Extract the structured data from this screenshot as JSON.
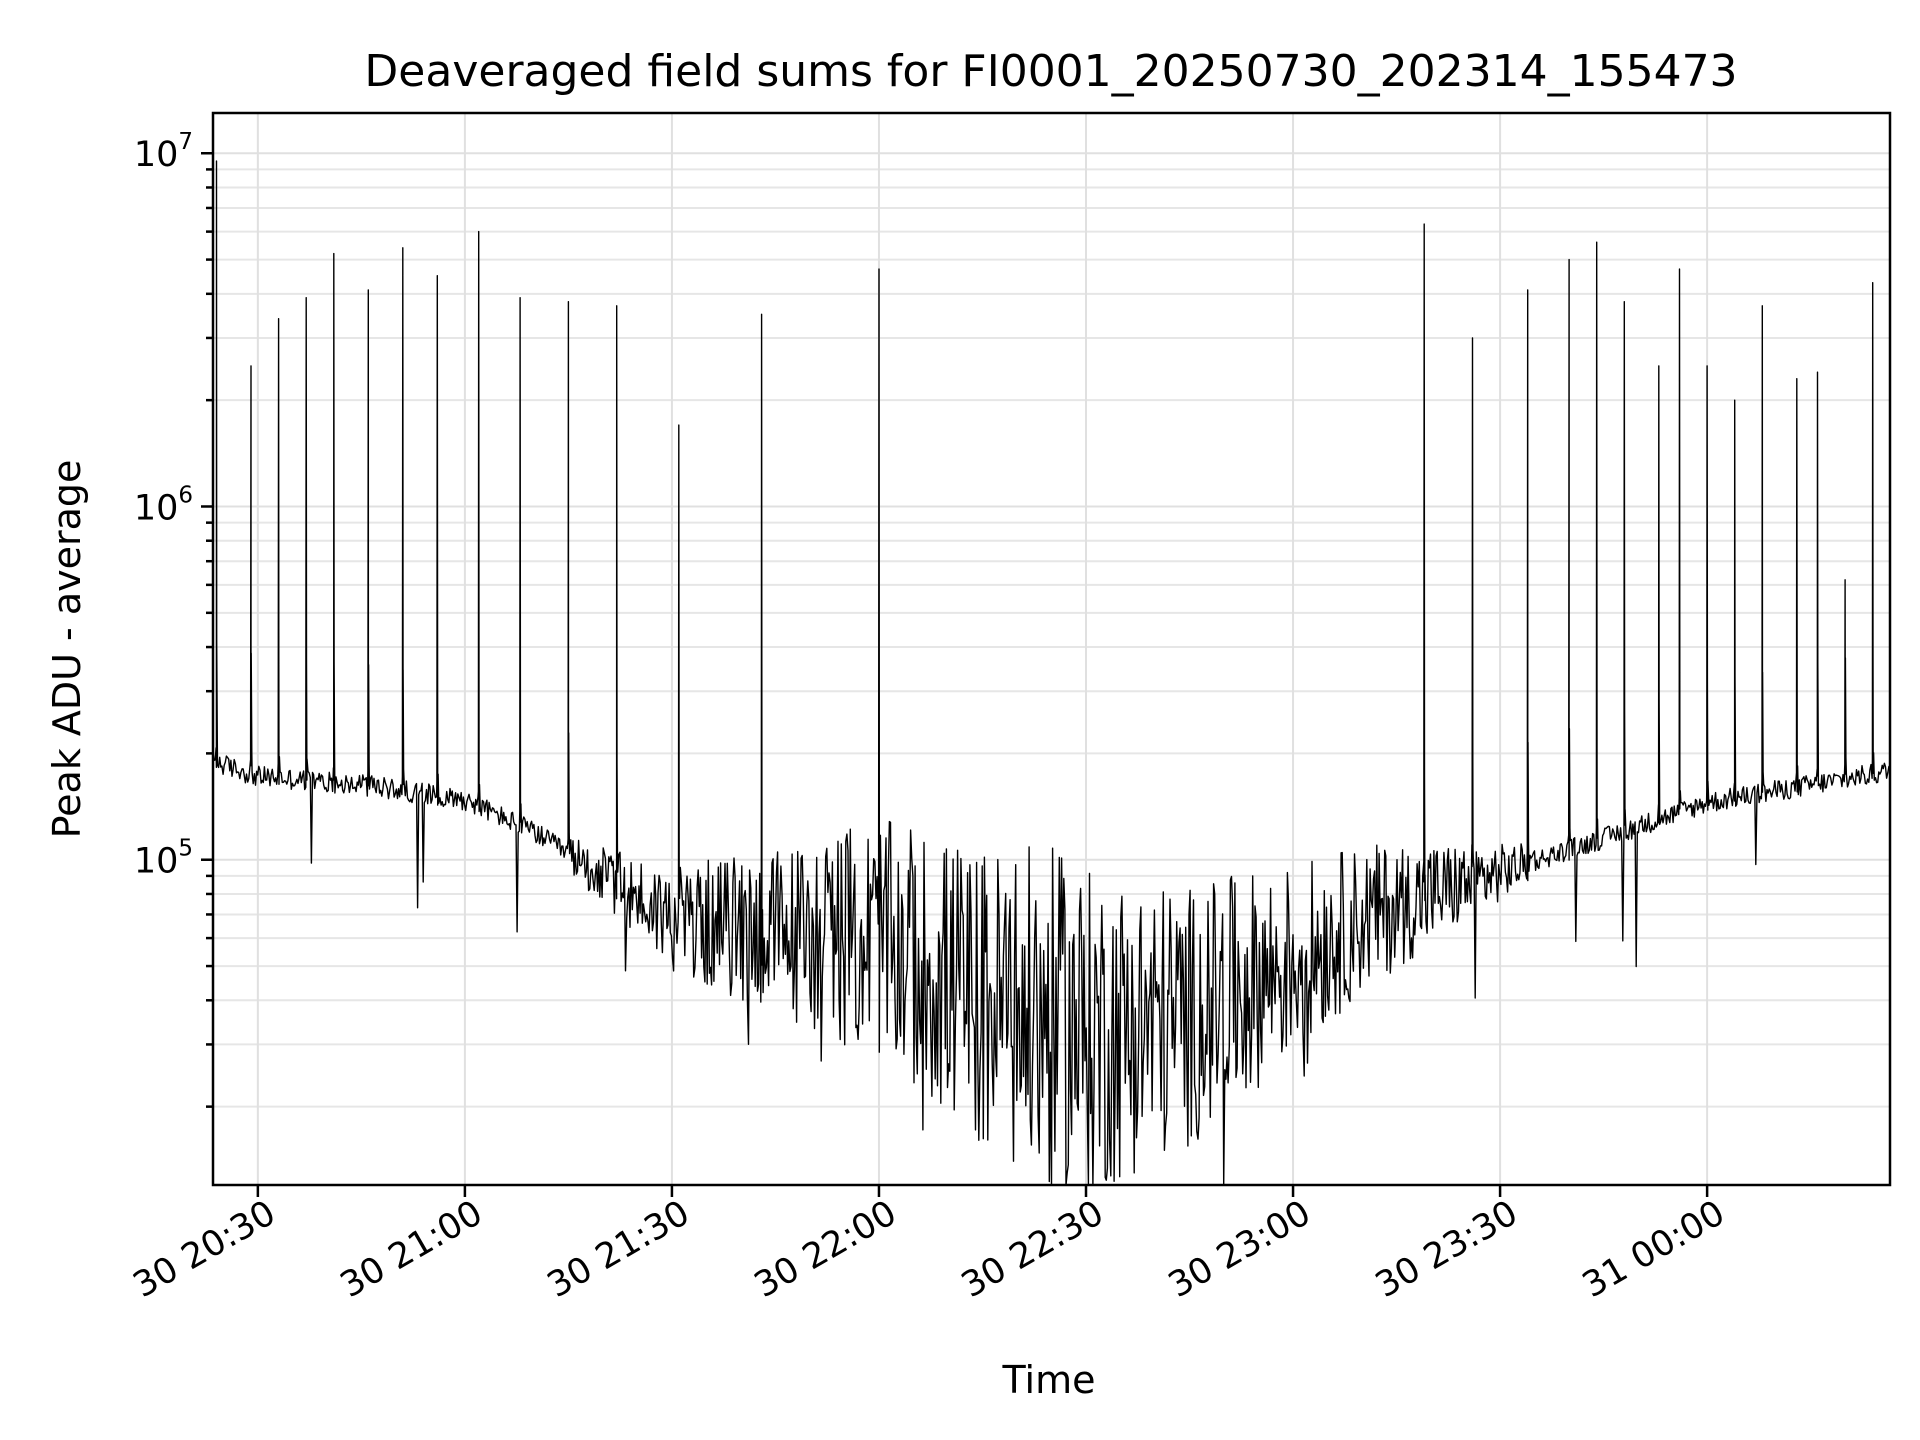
{
  "chart_data": {
    "type": "line",
    "title": "Deaveraged field sums for FI0001_20250730_202314_155473",
    "xlabel": "Time",
    "ylabel": "Peak ADU - average",
    "yscale": "log",
    "ylim": [
      12000,
      13000000
    ],
    "xlim": [
      "2025-07-30 20:23:30",
      "2025-07-31 00:26:30"
    ],
    "grid": true,
    "x_ticks": [
      {
        "at": "2025-07-30 20:30",
        "label": "30 20:30"
      },
      {
        "at": "2025-07-30 21:00",
        "label": "30 21:00"
      },
      {
        "at": "2025-07-30 21:30",
        "label": "30 21:30"
      },
      {
        "at": "2025-07-30 22:00",
        "label": "30 22:00"
      },
      {
        "at": "2025-07-30 22:30",
        "label": "30 22:30"
      },
      {
        "at": "2025-07-30 23:00",
        "label": "30 23:00"
      },
      {
        "at": "2025-07-30 23:30",
        "label": "30 23:30"
      },
      {
        "at": "2025-07-31 00:00",
        "label": "31 00:00"
      }
    ],
    "y_ticks": [
      {
        "value": 100000,
        "base": "10",
        "exp": "5"
      },
      {
        "value": 1000000,
        "base": "10",
        "exp": "6"
      },
      {
        "value": 10000000,
        "base": "10",
        "exp": "7"
      }
    ],
    "series": [
      {
        "color": "#000000",
        "baseline": {
          "x": [
            "2025-07-30 20:23:30",
            "2025-07-30 20:30",
            "2025-07-30 20:45",
            "2025-07-30 21:00",
            "2025-07-30 21:10",
            "2025-07-30 21:20",
            "2025-07-30 21:30",
            "2025-07-30 21:45",
            "2025-07-30 22:00",
            "2025-07-30 22:15",
            "2025-07-30 22:30",
            "2025-07-30 22:45",
            "2025-07-30 23:00",
            "2025-07-30 23:10",
            "2025-07-30 23:20",
            "2025-07-30 23:30",
            "2025-07-30 23:45",
            "2025-07-31 00:00",
            "2025-07-31 00:26:30"
          ],
          "y": [
            190000,
            172000,
            163000,
            148000,
            120000,
            90000,
            68000,
            62000,
            60000,
            40000,
            32000,
            36000,
            52000,
            68000,
            80000,
            92000,
            115000,
            145000,
            178000
          ]
        },
        "spikes": {
          "x": [
            "2025-07-30 20:24",
            "2025-07-30 20:29",
            "2025-07-30 20:33",
            "2025-07-30 20:37",
            "2025-07-30 20:41",
            "2025-07-30 20:46",
            "2025-07-30 20:51",
            "2025-07-30 20:56",
            "2025-07-30 21:02",
            "2025-07-30 21:08",
            "2025-07-30 21:15",
            "2025-07-30 21:22",
            "2025-07-30 21:31",
            "2025-07-30 21:43",
            "2025-07-30 22:00",
            "2025-07-30 23:19",
            "2025-07-30 23:26",
            "2025-07-30 23:34",
            "2025-07-30 23:40",
            "2025-07-30 23:44",
            "2025-07-30 23:48",
            "2025-07-30 23:53",
            "2025-07-30 23:56",
            "2025-07-31 00:00",
            "2025-07-31 00:04",
            "2025-07-31 00:08",
            "2025-07-31 00:13",
            "2025-07-31 00:16",
            "2025-07-31 00:20",
            "2025-07-31 00:24"
          ],
          "y": [
            9500000,
            2500000,
            3400000,
            3900000,
            5200000,
            4100000,
            5400000,
            4500000,
            6000000,
            3900000,
            3800000,
            3700000,
            1700000,
            3500000,
            4700000,
            6300000,
            3000000,
            4100000,
            5000000,
            5600000,
            3800000,
            2500000,
            4700000,
            2500000,
            2000000,
            3700000,
            2300000,
            2400000,
            620000,
            4300000
          ]
        }
      }
    ]
  }
}
